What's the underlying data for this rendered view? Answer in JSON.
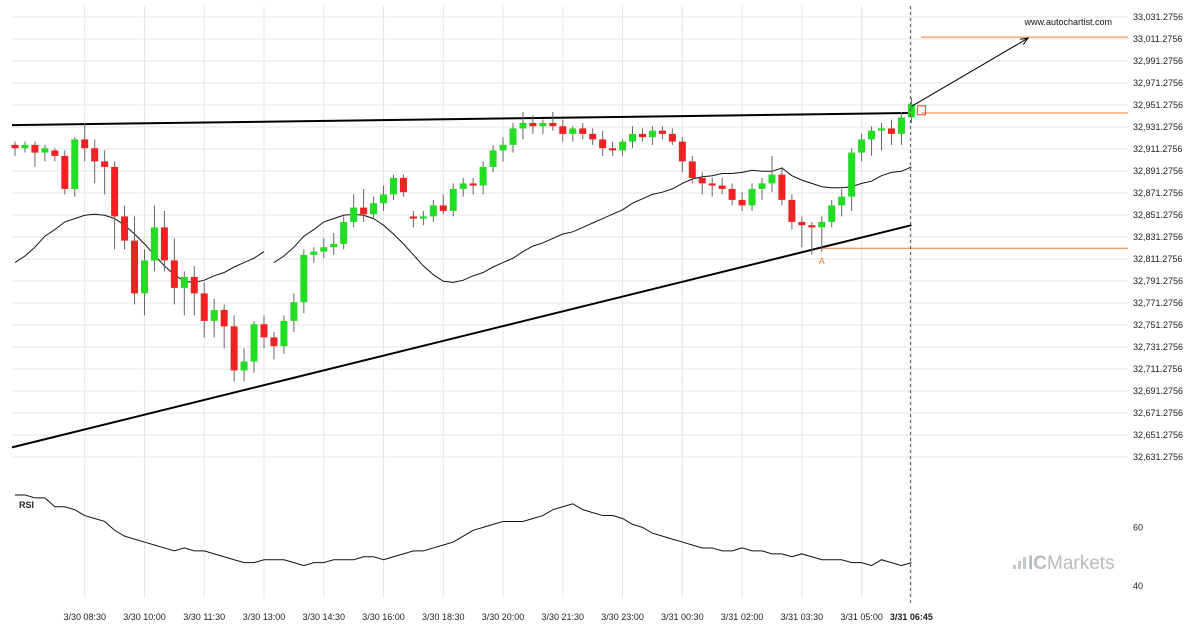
{
  "watermark_url": "www.autochartist.com",
  "brand": {
    "prefix": "IC",
    "suffix": "Markets",
    "icon": "signal-bars-icon"
  },
  "colors": {
    "up": "#22dd22",
    "down": "#ee2222",
    "trendline": "#000000",
    "level": "#f07a2b",
    "ma": "#111111",
    "rsi": "#111111",
    "grid": "#e6e6e6"
  },
  "chart_data": [
    {
      "type": "candlestick",
      "title": "",
      "xlabel": "",
      "ylabel": "",
      "ylim": [
        32621.2756,
        33041.2756
      ],
      "grid": true,
      "y_ticks": [
        "33,031.2756",
        "33,011.2756",
        "32,991.2756",
        "32,971.2756",
        "32,951.2756",
        "32,931.2756",
        "32,911.2756",
        "32,891.2756",
        "32,871.2756",
        "32,851.2756",
        "32,831.2756",
        "32,811.2756",
        "32,791.2756",
        "32,771.2756",
        "32,751.2756",
        "32,731.2756",
        "32,711.2756",
        "32,691.2756",
        "32,671.2756",
        "32,651.2756",
        "32,631.2756"
      ],
      "x_ticks": [
        {
          "label": "3/30 08:30",
          "index": 7
        },
        {
          "label": "3/30 10:00",
          "index": 13
        },
        {
          "label": "3/30 11:30",
          "index": 19
        },
        {
          "label": "3/30 13:00",
          "index": 25
        },
        {
          "label": "3/30 14:30",
          "index": 31
        },
        {
          "label": "3/30 16:00",
          "index": 37
        },
        {
          "label": "3/30 18:30",
          "index": 43
        },
        {
          "label": "3/30 20:00",
          "index": 49
        },
        {
          "label": "3/30 21:30",
          "index": 55
        },
        {
          "label": "3/30 23:00",
          "index": 61
        },
        {
          "label": "3/31 00:30",
          "index": 67
        },
        {
          "label": "3/31 02:00",
          "index": 73
        },
        {
          "label": "3/31 03:30",
          "index": 79
        },
        {
          "label": "3/31 05:00",
          "index": 85
        },
        {
          "label": "3/31 06:45",
          "index": 90,
          "bold": true
        }
      ],
      "candles": [
        [
          32915,
          32918,
          32905,
          32912
        ],
        [
          32912,
          32918,
          32908,
          32915
        ],
        [
          32915,
          32918,
          32895,
          32908
        ],
        [
          32908,
          32915,
          32900,
          32912
        ],
        [
          32910,
          32912,
          32900,
          32905
        ],
        [
          32905,
          32910,
          32870,
          32875
        ],
        [
          32875,
          32922,
          32868,
          32920
        ],
        [
          32920,
          32935,
          32900,
          32912
        ],
        [
          32912,
          32920,
          32880,
          32900
        ],
        [
          32900,
          32910,
          32870,
          32895
        ],
        [
          32895,
          32900,
          32820,
          32850
        ],
        [
          32850,
          32860,
          32820,
          32828
        ],
        [
          32828,
          32850,
          32770,
          32780
        ],
        [
          32780,
          32820,
          32760,
          32810
        ],
        [
          32810,
          32860,
          32800,
          32840
        ],
        [
          32840,
          32855,
          32800,
          32810
        ],
        [
          32810,
          32830,
          32770,
          32785
        ],
        [
          32785,
          32800,
          32760,
          32795
        ],
        [
          32795,
          32805,
          32760,
          32780
        ],
        [
          32780,
          32790,
          32740,
          32755
        ],
        [
          32755,
          32775,
          32740,
          32765
        ],
        [
          32765,
          32770,
          32730,
          32750
        ],
        [
          32750,
          32760,
          32700,
          32710
        ],
        [
          32710,
          32730,
          32700,
          32718
        ],
        [
          32718,
          32755,
          32708,
          32752
        ],
        [
          32752,
          32760,
          32730,
          32740
        ],
        [
          32740,
          32745,
          32720,
          32732
        ],
        [
          32732,
          32760,
          32725,
          32755
        ],
        [
          32755,
          32780,
          32745,
          32772
        ],
        [
          32772,
          32820,
          32762,
          32815
        ],
        [
          32815,
          32822,
          32808,
          32818
        ],
        [
          32818,
          32830,
          32812,
          32822
        ],
        [
          32822,
          32835,
          32815,
          32825
        ],
        [
          32825,
          32850,
          32820,
          32845
        ],
        [
          32845,
          32870,
          32840,
          32858
        ],
        [
          32858,
          32875,
          32845,
          32852
        ],
        [
          32852,
          32868,
          32848,
          32862
        ],
        [
          32862,
          32878,
          32855,
          32870
        ],
        [
          32870,
          32888,
          32865,
          32885
        ],
        [
          32885,
          32888,
          32868,
          32872
        ],
        [
          32850,
          32855,
          32840,
          32848
        ],
        [
          32848,
          32855,
          32842,
          32850
        ],
        [
          32850,
          32865,
          32845,
          32860
        ],
        [
          32860,
          32870,
          32852,
          32855
        ],
        [
          32855,
          32880,
          32850,
          32875
        ],
        [
          32875,
          32885,
          32868,
          32880
        ],
        [
          32880,
          32885,
          32870,
          32878
        ],
        [
          32878,
          32900,
          32870,
          32895
        ],
        [
          32895,
          32915,
          32890,
          32910
        ],
        [
          32910,
          32922,
          32900,
          32915
        ],
        [
          32915,
          32935,
          32908,
          32930
        ],
        [
          32930,
          32945,
          32920,
          32935
        ],
        [
          32935,
          32942,
          32925,
          32932
        ],
        [
          32932,
          32938,
          32925,
          32935
        ],
        [
          32935,
          32945,
          32928,
          32932
        ],
        [
          32932,
          32938,
          32918,
          32925
        ],
        [
          32925,
          32932,
          32918,
          32930
        ],
        [
          32930,
          32935,
          32920,
          32925
        ],
        [
          32925,
          32930,
          32915,
          32920
        ],
        [
          32920,
          32928,
          32905,
          32912
        ],
        [
          32912,
          32918,
          32905,
          32910
        ],
        [
          32910,
          32920,
          32905,
          32918
        ],
        [
          32918,
          32932,
          32912,
          32925
        ],
        [
          32925,
          32930,
          32918,
          32922
        ],
        [
          32922,
          32932,
          32915,
          32928
        ],
        [
          32928,
          32932,
          32920,
          32925
        ],
        [
          32925,
          32930,
          32915,
          32918
        ],
        [
          32918,
          32922,
          32890,
          32900
        ],
        [
          32900,
          32905,
          32880,
          32885
        ],
        [
          32885,
          32890,
          32870,
          32880
        ],
        [
          32880,
          32885,
          32868,
          32878
        ],
        [
          32878,
          32885,
          32870,
          32875
        ],
        [
          32875,
          32880,
          32860,
          32865
        ],
        [
          32865,
          32872,
          32855,
          32860
        ],
        [
          32860,
          32880,
          32855,
          32875
        ],
        [
          32875,
          32885,
          32865,
          32880
        ],
        [
          32880,
          32905,
          32872,
          32888
        ],
        [
          32888,
          32895,
          32860,
          32865
        ],
        [
          32865,
          32870,
          32838,
          32845
        ],
        [
          32845,
          32850,
          32822,
          32842
        ],
        [
          32842,
          32845,
          32815,
          32840
        ],
        [
          32840,
          32850,
          32818,
          32845
        ],
        [
          32845,
          32865,
          32840,
          32860
        ],
        [
          32860,
          32875,
          32850,
          32868
        ],
        [
          32868,
          32912,
          32855,
          32908
        ],
        [
          32908,
          32925,
          32900,
          32920
        ],
        [
          32920,
          32932,
          32905,
          32928
        ],
        [
          32928,
          32935,
          32910,
          32930
        ],
        [
          32930,
          32938,
          32915,
          32925
        ],
        [
          32925,
          32945,
          32915,
          32940
        ],
        [
          32940,
          32958,
          32935,
          32952
        ]
      ],
      "moving_average": [
        32808,
        32814,
        32822,
        32832,
        32838,
        32845,
        32848,
        32851,
        32852,
        32851,
        32848,
        32842,
        32834,
        32825,
        32815,
        32805,
        32797,
        32791,
        32790,
        32792,
        32796,
        32799,
        32804,
        32808,
        32812,
        32818,
        32823,
        32826,
        32830,
        32834,
        32836,
        32840,
        32844,
        32848,
        32852,
        32856,
        32862,
        32866,
        32870,
        32872,
        32875,
        32880,
        32884,
        32886,
        32887,
        32889,
        32889,
        32890,
        32892,
        32891,
        32891,
        32894,
        32887,
        32883,
        32880,
        32877,
        32876,
        32876,
        32877,
        32880,
        32882,
        32887,
        32890,
        32891,
        32895
      ],
      "moving_average_start_index": 26,
      "trendlines": [
        {
          "name": "resistance",
          "from": [
            0,
            32933
          ],
          "to": [
            90,
            32944
          ]
        },
        {
          "name": "support",
          "from": [
            0,
            32640
          ],
          "to": [
            90,
            32842
          ]
        }
      ],
      "levels": [
        {
          "value": 33013,
          "from_index": 91
        },
        {
          "value": 32944,
          "from_index": 91
        },
        {
          "value": 32821,
          "from_index": 81
        }
      ],
      "forecast_arrow": {
        "from": [
          90,
          32950
        ],
        "to": [
          100,
          33012
        ]
      },
      "point_label": {
        "text": "A",
        "index": 81,
        "value": 32814
      },
      "current_marker": {
        "index": 91,
        "value": 32946
      },
      "vertical_marker_index": 90
    },
    {
      "type": "line",
      "title": "",
      "label": "RSI",
      "ylim": [
        36,
        72
      ],
      "y_ticks": [
        60,
        40
      ],
      "values": [
        71,
        71,
        70,
        70,
        67,
        67,
        66,
        64,
        63,
        62,
        59,
        57,
        56,
        55,
        54,
        53,
        52,
        53,
        52,
        52,
        51,
        50,
        49,
        48,
        48,
        49,
        49,
        49,
        48,
        47,
        48,
        48,
        49,
        49,
        49,
        50,
        50,
        49,
        50,
        51,
        52,
        52,
        53,
        54,
        55,
        57,
        59,
        60,
        61,
        62,
        62,
        62,
        63,
        64,
        66,
        67,
        68,
        66,
        65,
        64,
        64,
        63,
        61,
        60,
        58,
        57,
        56,
        55,
        54,
        53,
        53,
        52,
        52,
        53,
        52,
        52,
        51,
        51,
        50,
        51,
        50,
        49,
        49,
        49,
        48,
        48,
        47,
        49,
        48,
        47,
        48
      ]
    }
  ]
}
